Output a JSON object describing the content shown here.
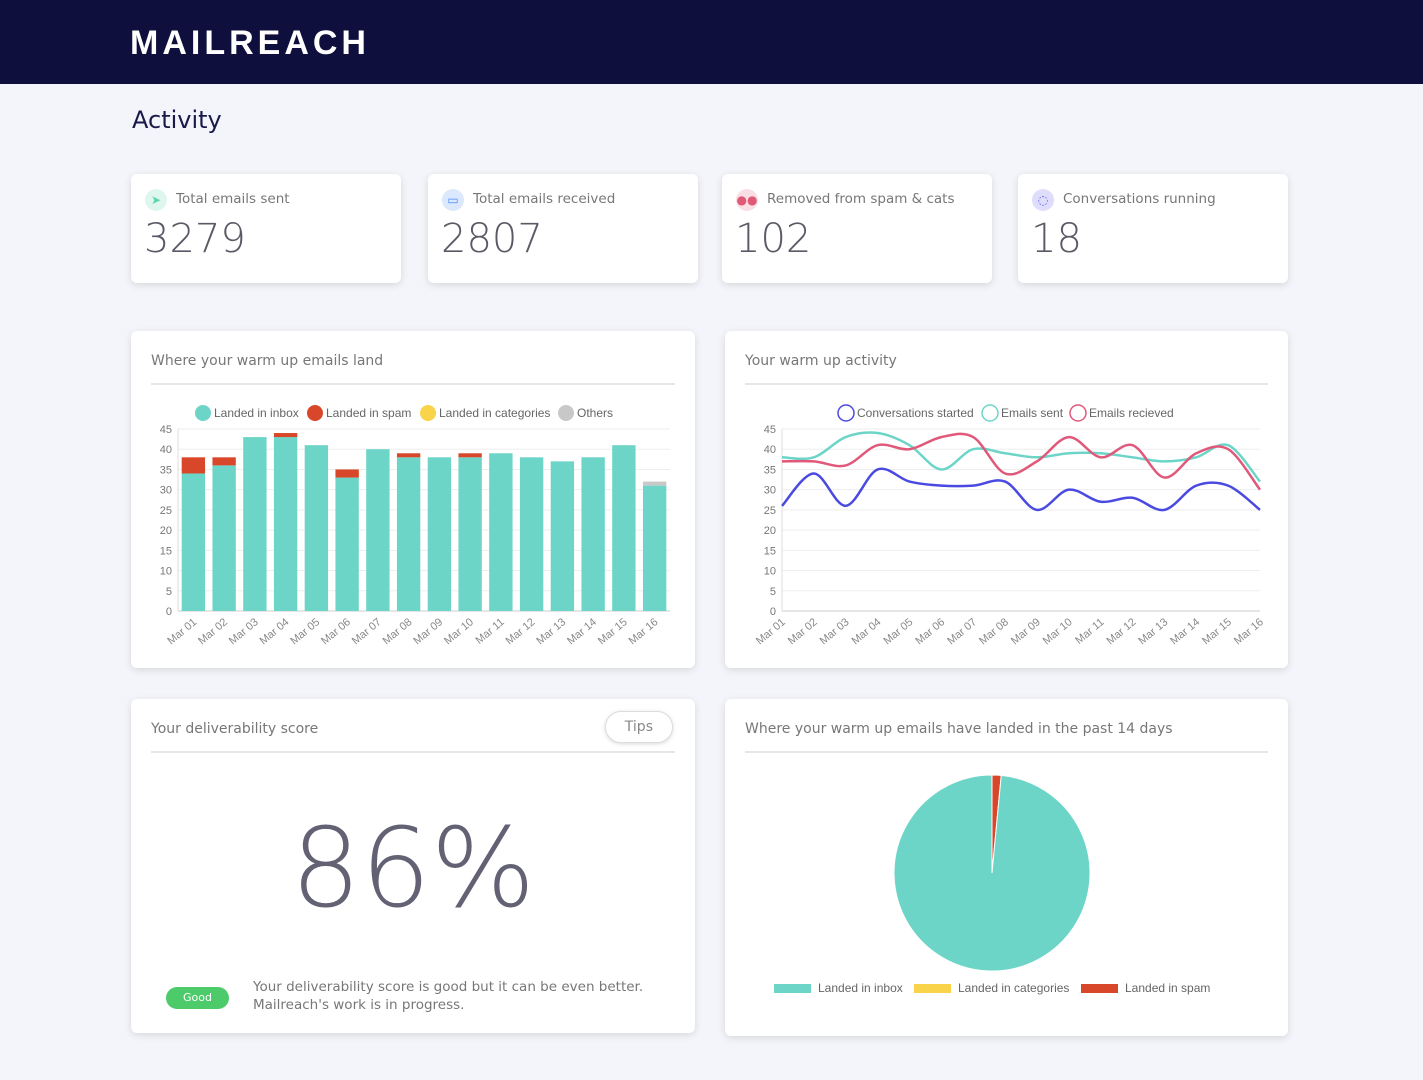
{
  "header": {
    "logo": "MAILREACH"
  },
  "page_title": "Activity",
  "stats": [
    {
      "label": "Total emails sent",
      "value": "3279",
      "icon": "paper-plane-icon",
      "color": "#5fd3b0"
    },
    {
      "label": "Total emails received",
      "value": "2807",
      "icon": "inbox-icon",
      "color": "#4d8df5"
    },
    {
      "label": "Removed from spam & cats",
      "value": "102",
      "icon": "flip-flops-icon",
      "color": "#e05a78"
    },
    {
      "label": "Conversations running",
      "value": "18",
      "icon": "chat-bubbles-icon",
      "color": "#5b5bf0"
    }
  ],
  "score": {
    "title": "Your deliverability score",
    "tips_label": "Tips",
    "value": "86%",
    "badge": "Good",
    "description": "Your deliverability score is good but it can be even better. Mailreach's work is in progress."
  },
  "chart_data": [
    {
      "type": "bar",
      "stacked": true,
      "title": "Where your warm up emails land",
      "categories": [
        "Mar 01",
        "Mar 02",
        "Mar 03",
        "Mar 04",
        "Mar 05",
        "Mar 06",
        "Mar 07",
        "Mar 08",
        "Mar 09",
        "Mar 10",
        "Mar 11",
        "Mar 12",
        "Mar 13",
        "Mar 14",
        "Mar 15",
        "Mar 16"
      ],
      "ylim": [
        0,
        45
      ],
      "yticks": [
        0,
        5,
        10,
        15,
        20,
        25,
        30,
        35,
        40,
        45
      ],
      "legend": "top",
      "series": [
        {
          "name": "Landed in inbox",
          "color": "#6dd5c8",
          "values": [
            34,
            36,
            43,
            43,
            41,
            33,
            40,
            38,
            38,
            38,
            39,
            38,
            37,
            38,
            41,
            31
          ]
        },
        {
          "name": "Landed in spam",
          "color": "#d9472b",
          "values": [
            4,
            2,
            0,
            1,
            0,
            2,
            0,
            1,
            0,
            1,
            0,
            0,
            0,
            0,
            0,
            0
          ]
        },
        {
          "name": "Landed in categories",
          "color": "#f9d44a",
          "values": [
            0,
            0,
            0,
            0,
            0,
            0,
            0,
            0,
            0,
            0,
            0,
            0,
            0,
            0,
            0,
            0
          ]
        },
        {
          "name": "Others",
          "color": "#c8c8c8",
          "values": [
            0,
            0,
            0,
            0,
            0,
            0,
            0,
            0,
            0,
            0,
            0,
            0,
            0,
            0,
            0,
            1
          ]
        }
      ]
    },
    {
      "type": "line",
      "title": "Your warm up activity",
      "categories": [
        "Mar 01",
        "Mar 02",
        "Mar 03",
        "Mar 04",
        "Mar 05",
        "Mar 06",
        "Mar 07",
        "Mar 08",
        "Mar 09",
        "Mar 10",
        "Mar 11",
        "Mar 12",
        "Mar 13",
        "Mar 14",
        "Mar 15",
        "Mar 16"
      ],
      "ylim": [
        0,
        45
      ],
      "yticks": [
        0,
        5,
        10,
        15,
        20,
        25,
        30,
        35,
        40,
        45
      ],
      "legend": "top",
      "series": [
        {
          "name": "Conversations started",
          "color": "#4a4ae0",
          "values": [
            26,
            34,
            26,
            35,
            32,
            31,
            31,
            32,
            25,
            30,
            27,
            28,
            25,
            31,
            31,
            25
          ]
        },
        {
          "name": "Emails sent",
          "color": "#6dd5c8",
          "values": [
            38,
            38,
            43,
            44,
            41,
            35,
            40,
            39,
            38,
            39,
            39,
            38,
            37,
            38,
            41,
            32
          ]
        },
        {
          "name": "Emails recieved",
          "color": "#e0587a",
          "values": [
            37,
            37,
            36,
            41,
            40,
            43,
            43,
            34,
            37,
            43,
            38,
            41,
            33,
            39,
            40,
            30
          ]
        }
      ]
    },
    {
      "type": "pie",
      "title": "Where your warm up emails have landed in the past 14 days",
      "legend": "bottom",
      "slices": [
        {
          "name": "Landed in inbox",
          "color": "#6dd5c8",
          "value": 98.5
        },
        {
          "name": "Landed in categories",
          "color": "#f9d44a",
          "value": 0
        },
        {
          "name": "Landed in spam",
          "color": "#d9472b",
          "value": 1.5
        }
      ]
    }
  ]
}
